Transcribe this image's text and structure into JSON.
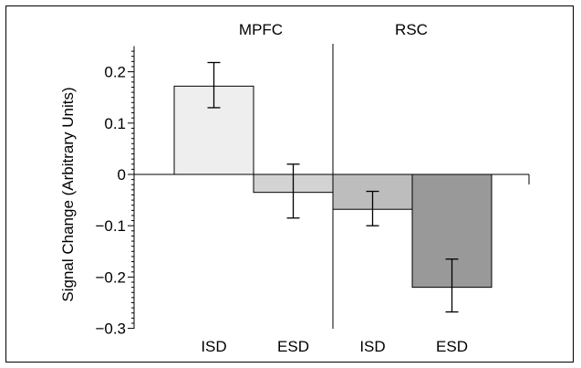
{
  "chart_data": {
    "type": "bar",
    "ylabel": "Signal Change (Arbitrary Units)",
    "ylim": [
      -0.3,
      0.25
    ],
    "yticks": [
      0.2,
      0.1,
      0,
      -0.1,
      -0.2,
      -0.3
    ],
    "ytick_labels": [
      "0.2",
      "0.1",
      "0",
      "−0.1",
      "−0.2",
      "−0.3"
    ],
    "groups": [
      {
        "name": "MPFC",
        "bars": [
          {
            "label": "ISD",
            "value": 0.172,
            "err_low": 0.13,
            "err_high": 0.218,
            "color": "#eeeeee"
          },
          {
            "label": "ESD",
            "value": -0.035,
            "err_low": -0.085,
            "err_high": 0.02,
            "color": "#d3d3d3"
          }
        ]
      },
      {
        "name": "RSC",
        "bars": [
          {
            "label": "ISD",
            "value": -0.068,
            "err_low": -0.1,
            "err_high": -0.033,
            "color": "#bdbdbd"
          },
          {
            "label": "ESD",
            "value": -0.22,
            "err_low": -0.268,
            "err_high": -0.165,
            "color": "#999999"
          }
        ]
      }
    ],
    "grid": false,
    "legend": "none"
  }
}
